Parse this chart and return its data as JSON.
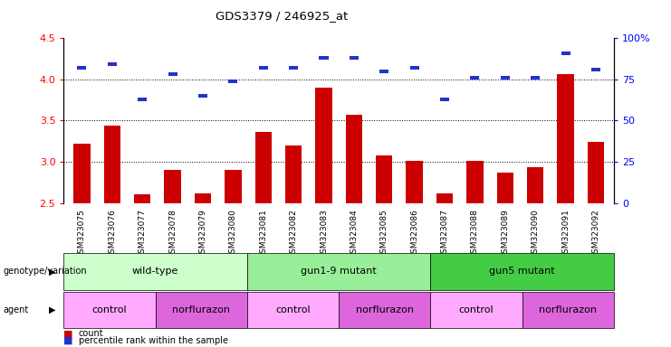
{
  "title": "GDS3379 / 246925_at",
  "samples": [
    "GSM323075",
    "GSM323076",
    "GSM323077",
    "GSM323078",
    "GSM323079",
    "GSM323080",
    "GSM323081",
    "GSM323082",
    "GSM323083",
    "GSM323084",
    "GSM323085",
    "GSM323086",
    "GSM323087",
    "GSM323088",
    "GSM323089",
    "GSM323090",
    "GSM323091",
    "GSM323092"
  ],
  "count_values": [
    3.22,
    3.44,
    2.61,
    2.9,
    2.62,
    2.9,
    3.36,
    3.2,
    3.9,
    3.57,
    3.08,
    3.01,
    2.62,
    3.01,
    2.87,
    2.93,
    4.06,
    3.24
  ],
  "percentile_values": [
    0.82,
    0.84,
    0.63,
    0.78,
    0.65,
    0.74,
    0.82,
    0.82,
    0.88,
    0.88,
    0.8,
    0.82,
    0.63,
    0.76,
    0.76,
    0.76,
    0.91,
    0.81
  ],
  "ymin": 2.5,
  "ymax": 4.5,
  "bar_color": "#cc0000",
  "blue_color": "#2233cc",
  "bar_width": 0.55,
  "genotype_groups": [
    {
      "label": "wild-type",
      "start": 0,
      "end": 6,
      "color": "#ccffcc"
    },
    {
      "label": "gun1-9 mutant",
      "start": 6,
      "end": 12,
      "color": "#99ee99"
    },
    {
      "label": "gun5 mutant",
      "start": 12,
      "end": 18,
      "color": "#44cc44"
    }
  ],
  "agent_groups": [
    {
      "label": "control",
      "start": 0,
      "end": 3,
      "color": "#ffaaff"
    },
    {
      "label": "norflurazon",
      "start": 3,
      "end": 6,
      "color": "#dd66dd"
    },
    {
      "label": "control",
      "start": 6,
      "end": 9,
      "color": "#ffaaff"
    },
    {
      "label": "norflurazon",
      "start": 9,
      "end": 12,
      "color": "#dd66dd"
    },
    {
      "label": "control",
      "start": 12,
      "end": 15,
      "color": "#ffaaff"
    },
    {
      "label": "norflurazon",
      "start": 15,
      "end": 18,
      "color": "#dd66dd"
    }
  ],
  "right_yticks": [
    0,
    25,
    50,
    75,
    100
  ],
  "right_yticklabels": [
    "0",
    "25",
    "50",
    "75",
    "100%"
  ],
  "left_yticks": [
    2.5,
    3.0,
    3.5,
    4.0,
    4.5
  ],
  "dotted_lines": [
    3.0,
    3.5,
    4.0
  ],
  "legend_count_label": "count",
  "legend_percentile_label": "percentile rank within the sample",
  "genotype_label": "genotype/variation",
  "agent_label": "agent"
}
